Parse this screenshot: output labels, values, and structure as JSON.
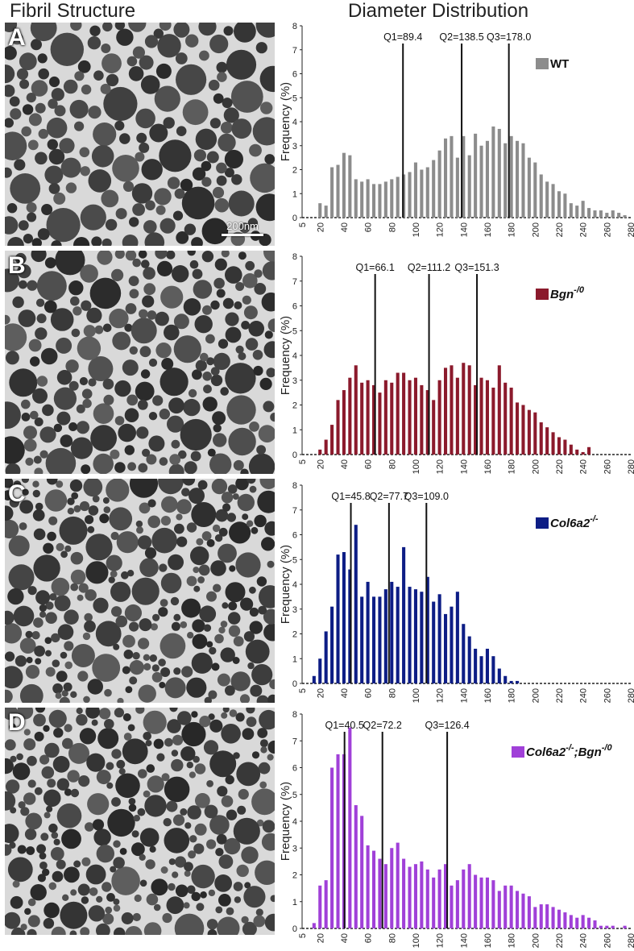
{
  "headers": {
    "left": "Fibril Structure",
    "right": "Diameter Distribution"
  },
  "panels": [
    {
      "letter": "A",
      "scale_label": "200nm",
      "shade": "#555555"
    },
    {
      "letter": "B",
      "scale_label": "",
      "shade": "#5e5e5e"
    },
    {
      "letter": "C",
      "scale_label": "",
      "shade": "#666666"
    },
    {
      "letter": "D",
      "scale_label": "",
      "shade": "#5a5a5a"
    }
  ],
  "chart_data": [
    {
      "type": "bar",
      "legend": {
        "label": "WT",
        "superscript": "",
        "color": "#8c8c8c",
        "italic": false
      },
      "quartiles": [
        {
          "label": "Q1=89.4",
          "value": 89.4
        },
        {
          "label": "Q2=138.5",
          "value": 138.5
        },
        {
          "label": "Q3=178.0",
          "value": 178.0
        }
      ],
      "ylabel": "Frequency (%)",
      "ylim": [
        0,
        8
      ],
      "xlim": [
        5,
        280
      ],
      "yticks": [
        "0",
        "1",
        "2",
        "3",
        "4",
        "5",
        "6",
        "7",
        "8"
      ],
      "xticks": [
        "5",
        "20",
        "40",
        "60",
        "80",
        "100",
        "120",
        "140",
        "160",
        "180",
        "200",
        "220",
        "240",
        "260",
        "280"
      ],
      "x": [
        20,
        25,
        30,
        35,
        40,
        45,
        50,
        55,
        60,
        65,
        70,
        75,
        80,
        85,
        90,
        95,
        100,
        105,
        110,
        115,
        120,
        125,
        130,
        135,
        140,
        145,
        150,
        155,
        160,
        165,
        170,
        175,
        180,
        185,
        190,
        195,
        200,
        205,
        210,
        215,
        220,
        225,
        230,
        235,
        240,
        245,
        250,
        255,
        260,
        265,
        270,
        275
      ],
      "values": [
        0.6,
        0.5,
        2.1,
        2.2,
        2.7,
        2.6,
        1.6,
        1.5,
        1.6,
        1.4,
        1.4,
        1.5,
        1.6,
        1.7,
        1.8,
        1.9,
        2.3,
        2.0,
        2.1,
        2.4,
        2.8,
        3.3,
        3.4,
        2.5,
        3.4,
        2.6,
        3.5,
        3.0,
        3.2,
        3.8,
        3.7,
        3.1,
        3.4,
        3.2,
        3.1,
        2.5,
        2.3,
        1.8,
        1.5,
        1.4,
        1.1,
        1.0,
        0.6,
        0.5,
        0.7,
        0.4,
        0.3,
        0.3,
        0.2,
        0.3,
        0.2,
        0.1
      ]
    },
    {
      "type": "bar",
      "legend": {
        "label": "Bgn",
        "superscript": "-/0",
        "color": "#8b1a2c",
        "italic": true
      },
      "quartiles": [
        {
          "label": "Q1=66.1",
          "value": 66.1
        },
        {
          "label": "Q2=111.2",
          "value": 111.2
        },
        {
          "label": "Q3=151.3",
          "value": 151.3
        }
      ],
      "ylabel": "Frequency (%)",
      "ylim": [
        0,
        8
      ],
      "xlim": [
        5,
        280
      ],
      "yticks": [
        "0",
        "1",
        "2",
        "3",
        "4",
        "5",
        "6",
        "7",
        "8"
      ],
      "xticks": [
        "5",
        "20",
        "40",
        "60",
        "80",
        "100",
        "120",
        "140",
        "160",
        "180",
        "200",
        "220",
        "240",
        "260",
        "280"
      ],
      "x": [
        20,
        25,
        30,
        35,
        40,
        45,
        50,
        55,
        60,
        65,
        70,
        75,
        80,
        85,
        90,
        95,
        100,
        105,
        110,
        115,
        120,
        125,
        130,
        135,
        140,
        145,
        150,
        155,
        160,
        165,
        170,
        175,
        180,
        185,
        190,
        195,
        200,
        205,
        210,
        215,
        220,
        225,
        230,
        235,
        240,
        245
      ],
      "values": [
        0.2,
        0.6,
        1.2,
        2.2,
        2.6,
        3.1,
        3.6,
        2.9,
        3.0,
        2.8,
        2.5,
        3.0,
        2.9,
        3.3,
        3.3,
        3.0,
        3.1,
        2.8,
        2.6,
        2.2,
        3.0,
        3.5,
        3.6,
        3.1,
        3.7,
        3.6,
        2.8,
        3.1,
        3.0,
        2.7,
        3.6,
        2.9,
        2.7,
        2.1,
        2.0,
        1.8,
        1.7,
        1.3,
        1.1,
        0.9,
        0.7,
        0.6,
        0.4,
        0.2,
        0.1,
        0.3
      ]
    },
    {
      "type": "bar",
      "legend": {
        "label": "Col6a2",
        "superscript": "-/-",
        "color": "#0d1d85",
        "italic": true
      },
      "quartiles": [
        {
          "label": "Q1=45.8",
          "value": 45.8
        },
        {
          "label": "Q2=77.7",
          "value": 77.7
        },
        {
          "label": "Q3=109.0",
          "value": 109.0
        }
      ],
      "ylabel": "Frequency (%)",
      "ylim": [
        0,
        8
      ],
      "xlim": [
        5,
        280
      ],
      "yticks": [
        "0",
        "1",
        "2",
        "3",
        "4",
        "5",
        "6",
        "7",
        "8"
      ],
      "xticks": [
        "5",
        "20",
        "40",
        "60",
        "80",
        "100",
        "120",
        "140",
        "160",
        "180",
        "200",
        "220",
        "240",
        "260",
        "280"
      ],
      "x": [
        15,
        20,
        25,
        30,
        35,
        40,
        45,
        50,
        55,
        60,
        65,
        70,
        75,
        80,
        85,
        90,
        95,
        100,
        105,
        110,
        115,
        120,
        125,
        130,
        135,
        140,
        145,
        150,
        155,
        160,
        165,
        170,
        175,
        180,
        185
      ],
      "values": [
        0.3,
        1.0,
        2.1,
        3.1,
        5.2,
        5.3,
        4.6,
        6.4,
        3.5,
        4.1,
        3.5,
        3.5,
        3.8,
        4.1,
        3.9,
        5.5,
        3.9,
        3.8,
        3.7,
        4.3,
        3.3,
        3.6,
        2.8,
        3.1,
        3.7,
        2.4,
        1.9,
        1.4,
        1.1,
        1.4,
        1.1,
        0.6,
        0.3,
        0.1,
        0.1
      ]
    },
    {
      "type": "bar",
      "legend": {
        "label": "Col6a2",
        "superscript": "-/-",
        "label2": ";Bgn",
        "superscript2": "-/0",
        "color": "#a040d8",
        "italic": true
      },
      "quartiles": [
        {
          "label": "Q1=40.5",
          "value": 40.5
        },
        {
          "label": "Q2=72.2",
          "value": 72.2
        },
        {
          "label": "Q3=126.4",
          "value": 126.4
        }
      ],
      "ylabel": "Frequency (%)",
      "ylim": [
        0,
        8
      ],
      "xlim": [
        5,
        280
      ],
      "yticks": [
        "0",
        "1",
        "2",
        "3",
        "4",
        "5",
        "6",
        "7",
        "8"
      ],
      "xticks": [
        "5",
        "20",
        "40",
        "60",
        "80",
        "100",
        "120",
        "140",
        "160",
        "180",
        "200",
        "220",
        "240",
        "260",
        "280"
      ],
      "x": [
        15,
        20,
        25,
        30,
        35,
        40,
        45,
        50,
        55,
        60,
        65,
        70,
        75,
        80,
        85,
        90,
        95,
        100,
        105,
        110,
        115,
        120,
        125,
        130,
        135,
        140,
        145,
        150,
        155,
        160,
        165,
        170,
        175,
        180,
        185,
        190,
        195,
        200,
        205,
        210,
        215,
        220,
        225,
        230,
        235,
        240,
        245,
        250,
        255,
        260,
        265,
        270,
        275
      ],
      "values": [
        0.2,
        1.6,
        1.8,
        6.0,
        6.5,
        6.5,
        7.5,
        4.6,
        4.2,
        3.1,
        2.9,
        2.6,
        2.4,
        3.0,
        3.2,
        2.6,
        2.3,
        2.4,
        2.5,
        2.2,
        1.9,
        2.2,
        2.4,
        1.6,
        1.8,
        2.2,
        2.4,
        2.0,
        1.9,
        1.9,
        1.8,
        1.4,
        1.6,
        1.6,
        1.4,
        1.3,
        1.2,
        0.8,
        0.9,
        0.9,
        0.8,
        0.7,
        0.6,
        0.5,
        0.4,
        0.5,
        0.4,
        0.3,
        0.1,
        0.1,
        0.1,
        0.0,
        0.1
      ]
    }
  ]
}
